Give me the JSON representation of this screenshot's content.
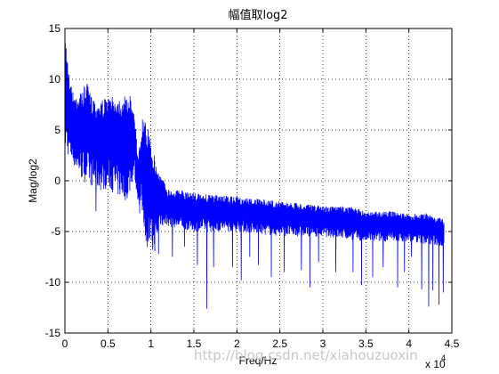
{
  "chart_data": {
    "type": "line",
    "title": "幅值取log2",
    "xlabel": "Freq/Hz",
    "ylabel": "Mag/log2",
    "xlim": [
      0,
      45000
    ],
    "ylim": [
      -15,
      15
    ],
    "grid": true,
    "x_tick_labels": [
      "0",
      "0.5",
      "1",
      "1.5",
      "2",
      "2.5",
      "3",
      "3.5",
      "4",
      "4.5"
    ],
    "x_tick_values": [
      0,
      5000,
      10000,
      15000,
      20000,
      25000,
      30000,
      35000,
      40000,
      45000
    ],
    "x_exponent_label": "x 10",
    "x_exponent_power": "4",
    "y_tick_labels": [
      "15",
      "10",
      "5",
      "0",
      "-5",
      "-10",
      "-15"
    ],
    "y_tick_values": [
      15,
      10,
      5,
      0,
      -5,
      -10,
      -15
    ],
    "series": [
      {
        "color": "#0000ff",
        "x_end": 44100,
        "upper_envelope": {
          "x": [
            0,
            200,
            500,
            1000,
            2000,
            2500,
            3000,
            4000,
            5000,
            6000,
            7000,
            7500,
            8000,
            8500,
            9000,
            9500,
            10000,
            10500,
            11000,
            12000,
            14000,
            16000,
            20000,
            25000,
            30000,
            33000,
            35000,
            38000,
            40000,
            42000,
            44100
          ],
          "y": [
            14.5,
            13.5,
            10.5,
            8.5,
            8.8,
            9.8,
            8.5,
            8.0,
            8.2,
            8.3,
            8.3,
            8.5,
            8.0,
            2.0,
            6.2,
            5.5,
            4.5,
            2.0,
            0.8,
            -0.8,
            -1.0,
            -1.3,
            -1.6,
            -2.0,
            -2.5,
            -2.5,
            -3.0,
            -3.0,
            -3.3,
            -3.2,
            -3.8
          ]
        },
        "lower_envelope": {
          "x": [
            0,
            1000,
            2000,
            3000,
            4000,
            5000,
            6000,
            7000,
            7500,
            8000,
            8500,
            9000,
            9500,
            10000,
            10500,
            11000,
            12000,
            15000,
            20000,
            25000,
            30000,
            35000,
            40000,
            44100
          ],
          "y": [
            3.0,
            1.5,
            0.0,
            -0.5,
            -1.0,
            -0.8,
            -1.5,
            -2.0,
            -1.5,
            0.5,
            -2.0,
            -3.5,
            -6.5,
            -7.0,
            -7.0,
            -4.5,
            -4.5,
            -5.0,
            -5.0,
            -5.5,
            -5.5,
            -6.0,
            -6.0,
            -6.5
          ]
        },
        "deep_dips": [
          [
            3600,
            -3.0
          ],
          [
            8700,
            -3.2
          ],
          [
            10200,
            -6.8
          ],
          [
            10900,
            -7.2
          ],
          [
            12500,
            -7.5
          ],
          [
            13900,
            -6.5
          ],
          [
            15400,
            -8.3
          ],
          [
            16500,
            -12.6
          ],
          [
            17300,
            -8.5
          ],
          [
            19500,
            -8.5
          ],
          [
            20500,
            -9.8
          ],
          [
            21500,
            -7.5
          ],
          [
            22500,
            -8.3
          ],
          [
            24000,
            -9.5
          ],
          [
            25500,
            -9.0
          ],
          [
            27500,
            -8.8
          ],
          [
            28500,
            -10.5
          ],
          [
            29500,
            -8.0
          ],
          [
            31500,
            -9.0
          ],
          [
            33500,
            -9.0
          ],
          [
            34500,
            -10.3
          ],
          [
            35800,
            -9.5
          ],
          [
            37000,
            -8.5
          ],
          [
            38700,
            -10.5
          ],
          [
            39500,
            -9.0
          ],
          [
            40300,
            -7.5
          ],
          [
            41500,
            -10.7
          ],
          [
            42300,
            -12.4
          ],
          [
            42800,
            -10.8
          ],
          [
            43500,
            -12.2
          ],
          [
            44000,
            -11.0
          ]
        ]
      }
    ]
  },
  "watermark": "http://blog.csdn.net/xiahouzuoxin"
}
